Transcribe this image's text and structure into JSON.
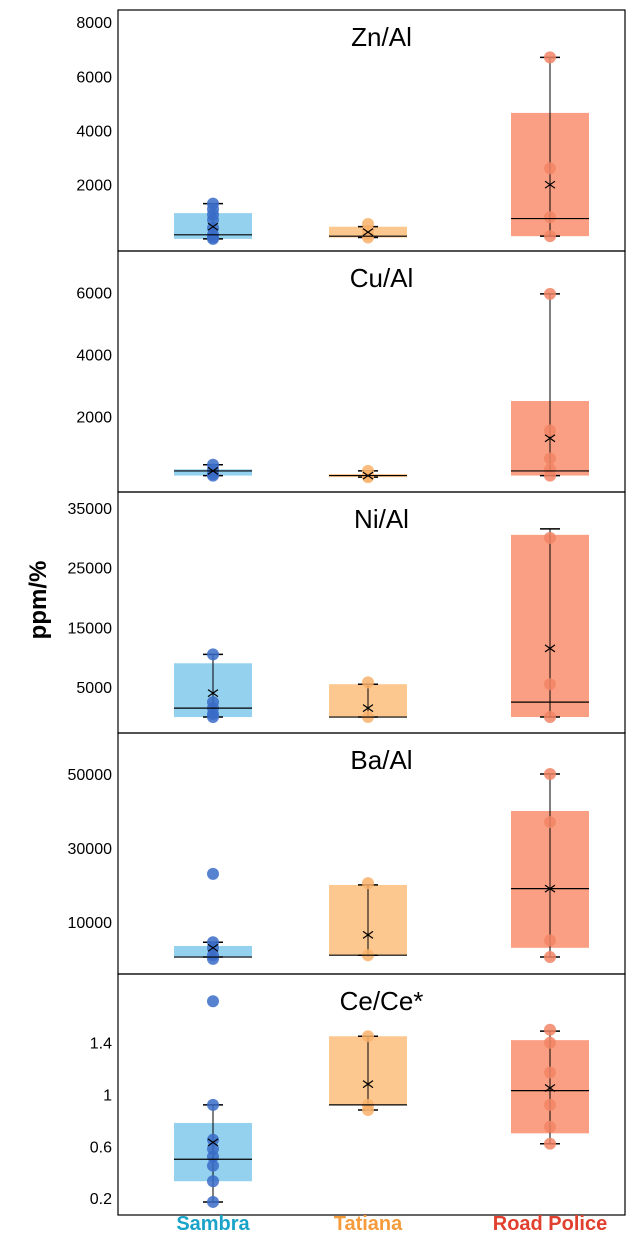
{
  "ylabel": "ppm/%",
  "groups": [
    {
      "name": "Sambra",
      "label_color": "#1aa3c9",
      "box_color": "#8ecfee",
      "point_color": "#3a6cc8"
    },
    {
      "name": "Tatiana",
      "label_color": "#f59b3c",
      "box_color": "#fcc58a",
      "point_color": "#f9b26b"
    },
    {
      "name": "Road Police",
      "label_color": "#e2402e",
      "box_color": "#fa9a7c",
      "point_color": "#f28566"
    }
  ],
  "chart_data": [
    {
      "type": "box",
      "title": "Zn/Al",
      "ylim": [
        -300,
        8300
      ],
      "yticks": [
        2000,
        4000,
        6000,
        8000
      ],
      "categories": [
        "Sambra",
        "Tatiana",
        "Road Police"
      ],
      "boxes": [
        {
          "whisker_low": 0,
          "q1": 0,
          "median": 150,
          "q3": 950,
          "whisker_high": 1300,
          "mean": 450,
          "points": [
            0,
            50,
            150,
            400,
            700,
            900,
            1100,
            1300
          ]
        },
        {
          "whisker_low": 50,
          "q1": 50,
          "median": 100,
          "q3": 450,
          "whisker_high": 450,
          "mean": 250,
          "points": [
            50,
            150,
            300,
            550
          ]
        },
        {
          "whisker_low": 100,
          "q1": 100,
          "median": 750,
          "q3": 4650,
          "whisker_high": 6700,
          "mean": 2000,
          "points": [
            100,
            800,
            2600,
            6700
          ]
        }
      ]
    },
    {
      "type": "box",
      "title": "Cu/Al",
      "ylim": [
        -300,
        7200
      ],
      "yticks": [
        2000,
        4000,
        6000
      ],
      "categories": [
        "Sambra",
        "Tatiana",
        "Road Police"
      ],
      "boxes": [
        {
          "whisker_low": 100,
          "q1": 100,
          "median": 250,
          "q3": 300,
          "whisker_high": 450,
          "mean": 250,
          "points": [
            100,
            150,
            300,
            450
          ]
        },
        {
          "whisker_low": 50,
          "q1": 50,
          "median": 100,
          "q3": 150,
          "whisker_high": 250,
          "mean": 100,
          "points": [
            50,
            100,
            250
          ]
        },
        {
          "whisker_low": 100,
          "q1": 100,
          "median": 250,
          "q3": 2500,
          "whisker_high": 5950,
          "mean": 1300,
          "points": [
            100,
            300,
            650,
            1550,
            5950
          ]
        }
      ]
    },
    {
      "type": "box",
      "title": "Ni/Al",
      "ylim": [
        -2000,
        37000
      ],
      "yticks": [
        5000,
        15000,
        25000,
        35000
      ],
      "categories": [
        "Sambra",
        "Tatiana",
        "Road Police"
      ],
      "boxes": [
        {
          "whisker_low": 0,
          "q1": 0,
          "median": 1500,
          "q3": 9000,
          "whisker_high": 10500,
          "mean": 4000,
          "points": [
            0,
            500,
            1500,
            2500,
            10500
          ]
        },
        {
          "whisker_low": 0,
          "q1": 0,
          "median": 0,
          "q3": 5500,
          "whisker_high": 5500,
          "mean": 1500,
          "points": [
            0,
            5800
          ]
        },
        {
          "whisker_low": 0,
          "q1": 0,
          "median": 2500,
          "q3": 30500,
          "whisker_high": 31500,
          "mean": 11500,
          "points": [
            0,
            5500,
            30000
          ]
        }
      ]
    },
    {
      "type": "box",
      "title": "Ba/Al",
      "ylim": [
        -3000,
        60000
      ],
      "yticks": [
        10000,
        30000,
        50000
      ],
      "categories": [
        "Sambra",
        "Tatiana",
        "Road Police"
      ],
      "boxes": [
        {
          "whisker_low": 500,
          "q1": 500,
          "median": 500,
          "q3": 3500,
          "whisker_high": 4500,
          "mean": 3000,
          "points": [
            0,
            1000,
            3000,
            4500,
            23000
          ]
        },
        {
          "whisker_low": 1000,
          "q1": 1000,
          "median": 1000,
          "q3": 20000,
          "whisker_high": 20000,
          "mean": 6500,
          "points": [
            1000,
            20500
          ]
        },
        {
          "whisker_low": 500,
          "q1": 3000,
          "median": 19000,
          "q3": 40000,
          "whisker_high": 50000,
          "mean": 19000,
          "points": [
            500,
            5000,
            37000,
            50000
          ]
        }
      ]
    },
    {
      "type": "box",
      "title": "Ce/Ce*",
      "ylim": [
        0.1,
        1.9
      ],
      "yticks": [
        0.2,
        0.6,
        1.0,
        1.4
      ],
      "categories": [
        "Sambra",
        "Tatiana",
        "Road Police"
      ],
      "boxes": [
        {
          "whisker_low": 0.17,
          "q1": 0.33,
          "median": 0.5,
          "q3": 0.78,
          "whisker_high": 0.92,
          "mean": 0.63,
          "points": [
            0.17,
            0.33,
            0.45,
            0.52,
            0.58,
            0.65,
            0.92,
            1.72
          ]
        },
        {
          "whisker_low": 0.88,
          "q1": 0.92,
          "median": 0.92,
          "q3": 1.45,
          "whisker_high": 1.45,
          "mean": 1.08,
          "points": [
            0.88,
            0.92,
            1.45
          ]
        },
        {
          "whisker_low": 0.62,
          "q1": 0.7,
          "median": 1.03,
          "q3": 1.42,
          "whisker_high": 1.49,
          "mean": 1.05,
          "points": [
            0.62,
            0.75,
            0.92,
            1.17,
            1.4,
            1.5
          ]
        }
      ]
    }
  ]
}
